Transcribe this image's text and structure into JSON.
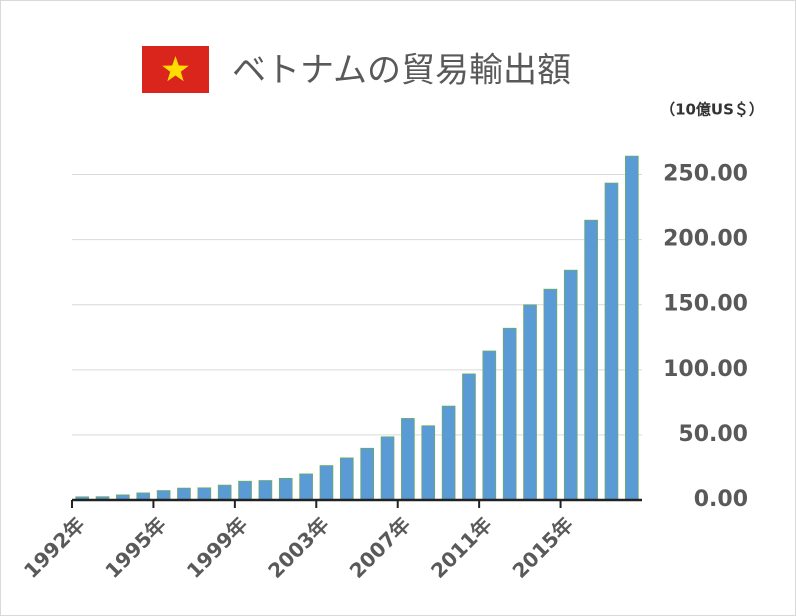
{
  "chart_data": {
    "type": "bar",
    "title": "ベトナムの貿易輸出額",
    "unit_label": "（10億US＄）",
    "categories": [
      "1992年",
      null,
      null,
      null,
      "1995年",
      null,
      null,
      null,
      "1999年",
      null,
      null,
      null,
      "2003年",
      null,
      null,
      null,
      "2007年",
      null,
      null,
      null,
      "2011年",
      null,
      null,
      null,
      "2015年",
      null,
      null,
      null
    ],
    "values": [
      2.5,
      2.6,
      4,
      5.5,
      7.3,
      9.2,
      9.4,
      11.5,
      14.5,
      15,
      16.7,
      20.1,
      26.5,
      32.4,
      39.8,
      48.6,
      62.7,
      57.1,
      72.2,
      96.9,
      114.5,
      132,
      150,
      162,
      176.6,
      215,
      243.5,
      264.2
    ],
    "color": "#5b9bd5",
    "ylim": [
      0,
      275
    ],
    "yticks": [
      {
        "value": 0,
        "label": "0.00"
      },
      {
        "value": 50,
        "label": "50.00"
      },
      {
        "value": 100,
        "label": "100.00"
      },
      {
        "value": 150,
        "label": "150.00"
      },
      {
        "value": 200,
        "label": "200.00"
      },
      {
        "value": 250,
        "label": "250.00"
      }
    ],
    "grid": true
  }
}
